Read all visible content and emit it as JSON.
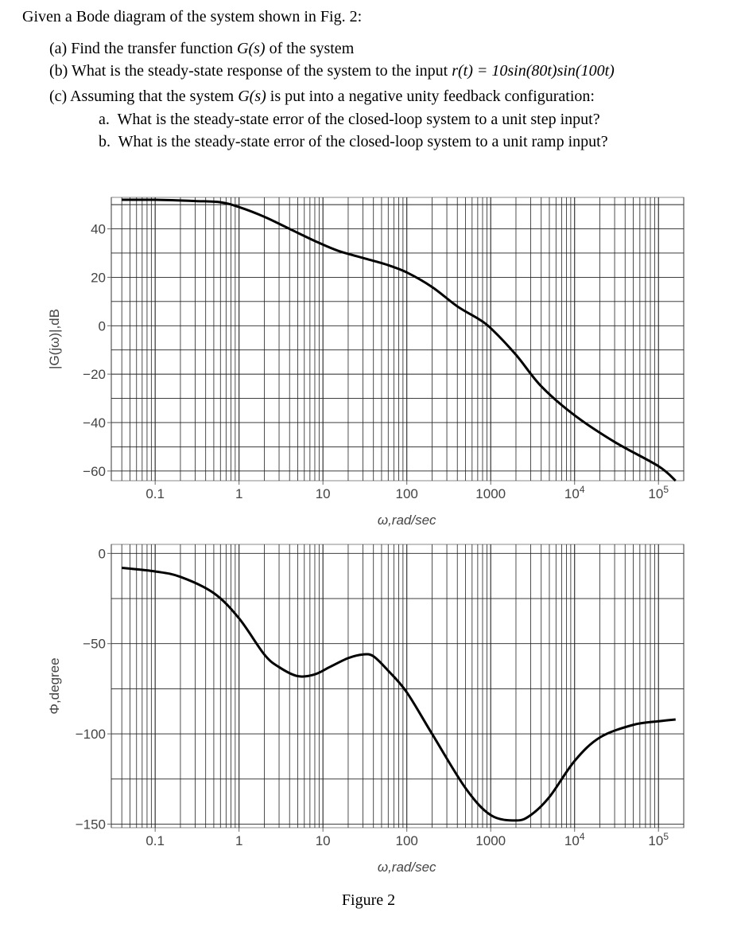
{
  "problem": {
    "intro": "Given a Bode diagram of the system shown in Fig. 2:",
    "items": [
      {
        "label": "(a)",
        "pre": "Find the transfer function ",
        "expr": "G(s)",
        "post": " of the system"
      },
      {
        "label": "(b)",
        "pre": "What is the steady-state response of the system to the input ",
        "expr": "r(t) = 10sin(80t)sin(100t)",
        "post": ""
      },
      {
        "label": "(c)",
        "pre": "Assuming that the system ",
        "expr": "G(s)",
        "post": " is put into a negative unity feedback configuration:"
      }
    ],
    "subitems": [
      {
        "label": "a.",
        "text": "What is the steady-state error of the closed-loop system to a unit step input?"
      },
      {
        "label": "b.",
        "text": "What is the steady-state error of the closed-loop system to a unit ramp input?"
      }
    ]
  },
  "figure_caption": "Figure 2",
  "chart_data": [
    {
      "type": "line",
      "title": "",
      "xlabel": "ω,rad/sec",
      "ylabel": "|G(jω)|,dB",
      "xscale": "log",
      "xlim": [
        0.03,
        200000
      ],
      "ylim": [
        -64,
        53
      ],
      "yticks": [
        40,
        20,
        0,
        -20,
        -40,
        -60
      ],
      "ytick_labels": [
        "40",
        "20",
        "0",
        "−20",
        "−40",
        "−60"
      ],
      "xticks": [
        0.1,
        1,
        10,
        100,
        1000,
        10000,
        100000
      ],
      "xtick_labels": [
        "0.1",
        "1",
        "10",
        "100",
        "1000",
        "10^4",
        "10^5"
      ],
      "grid": true,
      "series": [
        {
          "x": [
            0.04,
            0.1,
            0.3,
            0.6,
            1,
            2,
            4,
            8,
            15,
            30,
            60,
            100,
            200,
            400,
            700,
            1000,
            2000,
            4000,
            10000,
            30000,
            100000,
            160000
          ],
          "y": [
            52,
            52,
            51.5,
            51,
            49,
            45,
            40,
            35,
            31,
            28,
            25,
            22,
            16,
            8,
            3,
            -1,
            -12,
            -25,
            -37,
            -48,
            -58,
            -64
          ]
        }
      ]
    },
    {
      "type": "line",
      "title": "",
      "xlabel": "ω,rad/sec",
      "ylabel": "Φ,degree",
      "xscale": "log",
      "xlim": [
        0.03,
        200000
      ],
      "ylim": [
        -152,
        5
      ],
      "yticks": [
        0,
        -50,
        -100,
        -150
      ],
      "ytick_labels": [
        "0",
        "−50",
        "−100",
        "−150"
      ],
      "xticks": [
        0.1,
        1,
        10,
        100,
        1000,
        10000,
        100000
      ],
      "xtick_labels": [
        "0.1",
        "1",
        "10",
        "100",
        "1000",
        "10^4",
        "10^5"
      ],
      "grid": true,
      "series": [
        {
          "x": [
            0.04,
            0.1,
            0.2,
            0.5,
            1,
            2,
            3,
            5,
            8,
            12,
            20,
            30,
            40,
            60,
            100,
            200,
            500,
            1000,
            2000,
            3000,
            5000,
            10000,
            20000,
            50000,
            100000,
            160000
          ],
          "y": [
            -8,
            -10,
            -13,
            -22,
            -36,
            -56,
            -63,
            -68,
            -67,
            -63,
            -58,
            -56,
            -57,
            -65,
            -77,
            -100,
            -130,
            -145,
            -148,
            -145,
            -135,
            -115,
            -102,
            -95,
            -93,
            -92
          ]
        }
      ]
    }
  ]
}
